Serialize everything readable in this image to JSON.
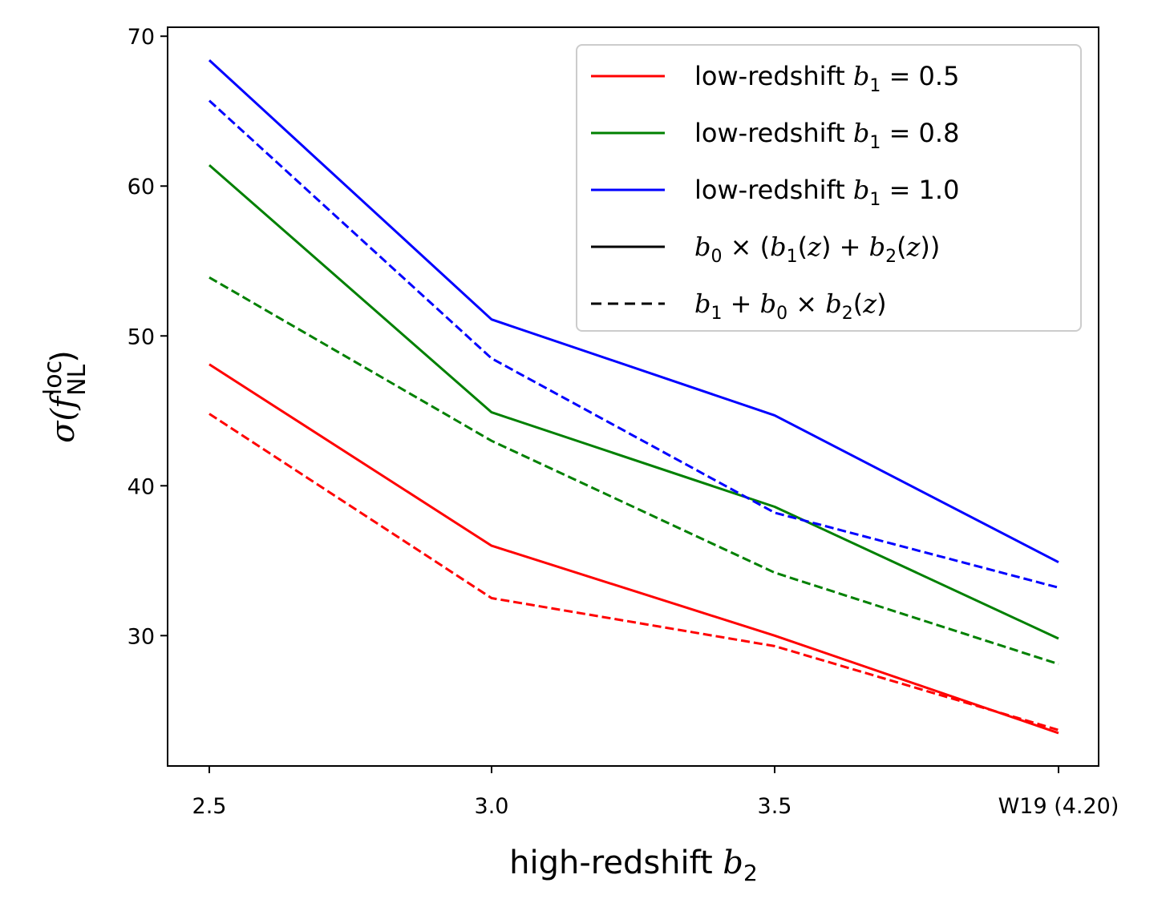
{
  "chart_data": {
    "type": "line",
    "xlabel": "high-redshift b₂",
    "ylabel": "σ(f_NL^loc)",
    "categories": [
      "2.5",
      "3.0",
      "3.5",
      "W19 (4.20)"
    ],
    "ylim": [
      21.3,
      70.6
    ],
    "yticks": [
      30,
      40,
      50,
      60,
      70
    ],
    "grid": false,
    "legend_position": "top-right",
    "series": [
      {
        "name": "low-redshift b1 = 0.5, b0 × (b1(z) + b2(z))",
        "color": "#ff0000",
        "style": "solid",
        "values": [
          48.1,
          36.0,
          30.0,
          23.5
        ]
      },
      {
        "name": "low-redshift b1 = 0.5, b1 + b0 × b2(z)",
        "color": "#ff0000",
        "style": "dashed",
        "values": [
          44.8,
          32.5,
          29.3,
          23.7
        ]
      },
      {
        "name": "low-redshift b1 = 0.8, b0 × (b1(z) + b2(z))",
        "color": "#008000",
        "style": "solid",
        "values": [
          61.4,
          44.9,
          38.6,
          29.8
        ]
      },
      {
        "name": "low-redshift b1 = 0.8, b1 + b0 × b2(z)",
        "color": "#008000",
        "style": "dashed",
        "values": [
          53.9,
          43.0,
          34.2,
          28.1
        ]
      },
      {
        "name": "low-redshift b1 = 1.0, b0 × (b1(z) + b2(z))",
        "color": "#0000ff",
        "style": "solid",
        "values": [
          68.4,
          51.1,
          44.7,
          34.9
        ]
      },
      {
        "name": "low-redshift b1 = 1.0, b1 + b0 × b2(z)",
        "color": "#0000ff",
        "style": "dashed",
        "values": [
          65.7,
          48.5,
          38.2,
          33.2
        ]
      }
    ],
    "legend": [
      {
        "prefix": "low-redshift ",
        "var": "b",
        "sub": "1",
        "suffix": " = 0.5",
        "color": "#ff0000",
        "style": "solid"
      },
      {
        "prefix": "low-redshift ",
        "var": "b",
        "sub": "1",
        "suffix": " = 0.8",
        "color": "#008000",
        "style": "solid"
      },
      {
        "prefix": "low-redshift ",
        "var": "b",
        "sub": "1",
        "suffix": " = 1.0",
        "color": "#0000ff",
        "style": "solid"
      },
      {
        "label": "b0 × (b1(z) + b2(z))",
        "color": "#000000",
        "style": "solid"
      },
      {
        "label": "b1 + b0 × b2(z)",
        "color": "#000000",
        "style": "dashed"
      }
    ]
  }
}
